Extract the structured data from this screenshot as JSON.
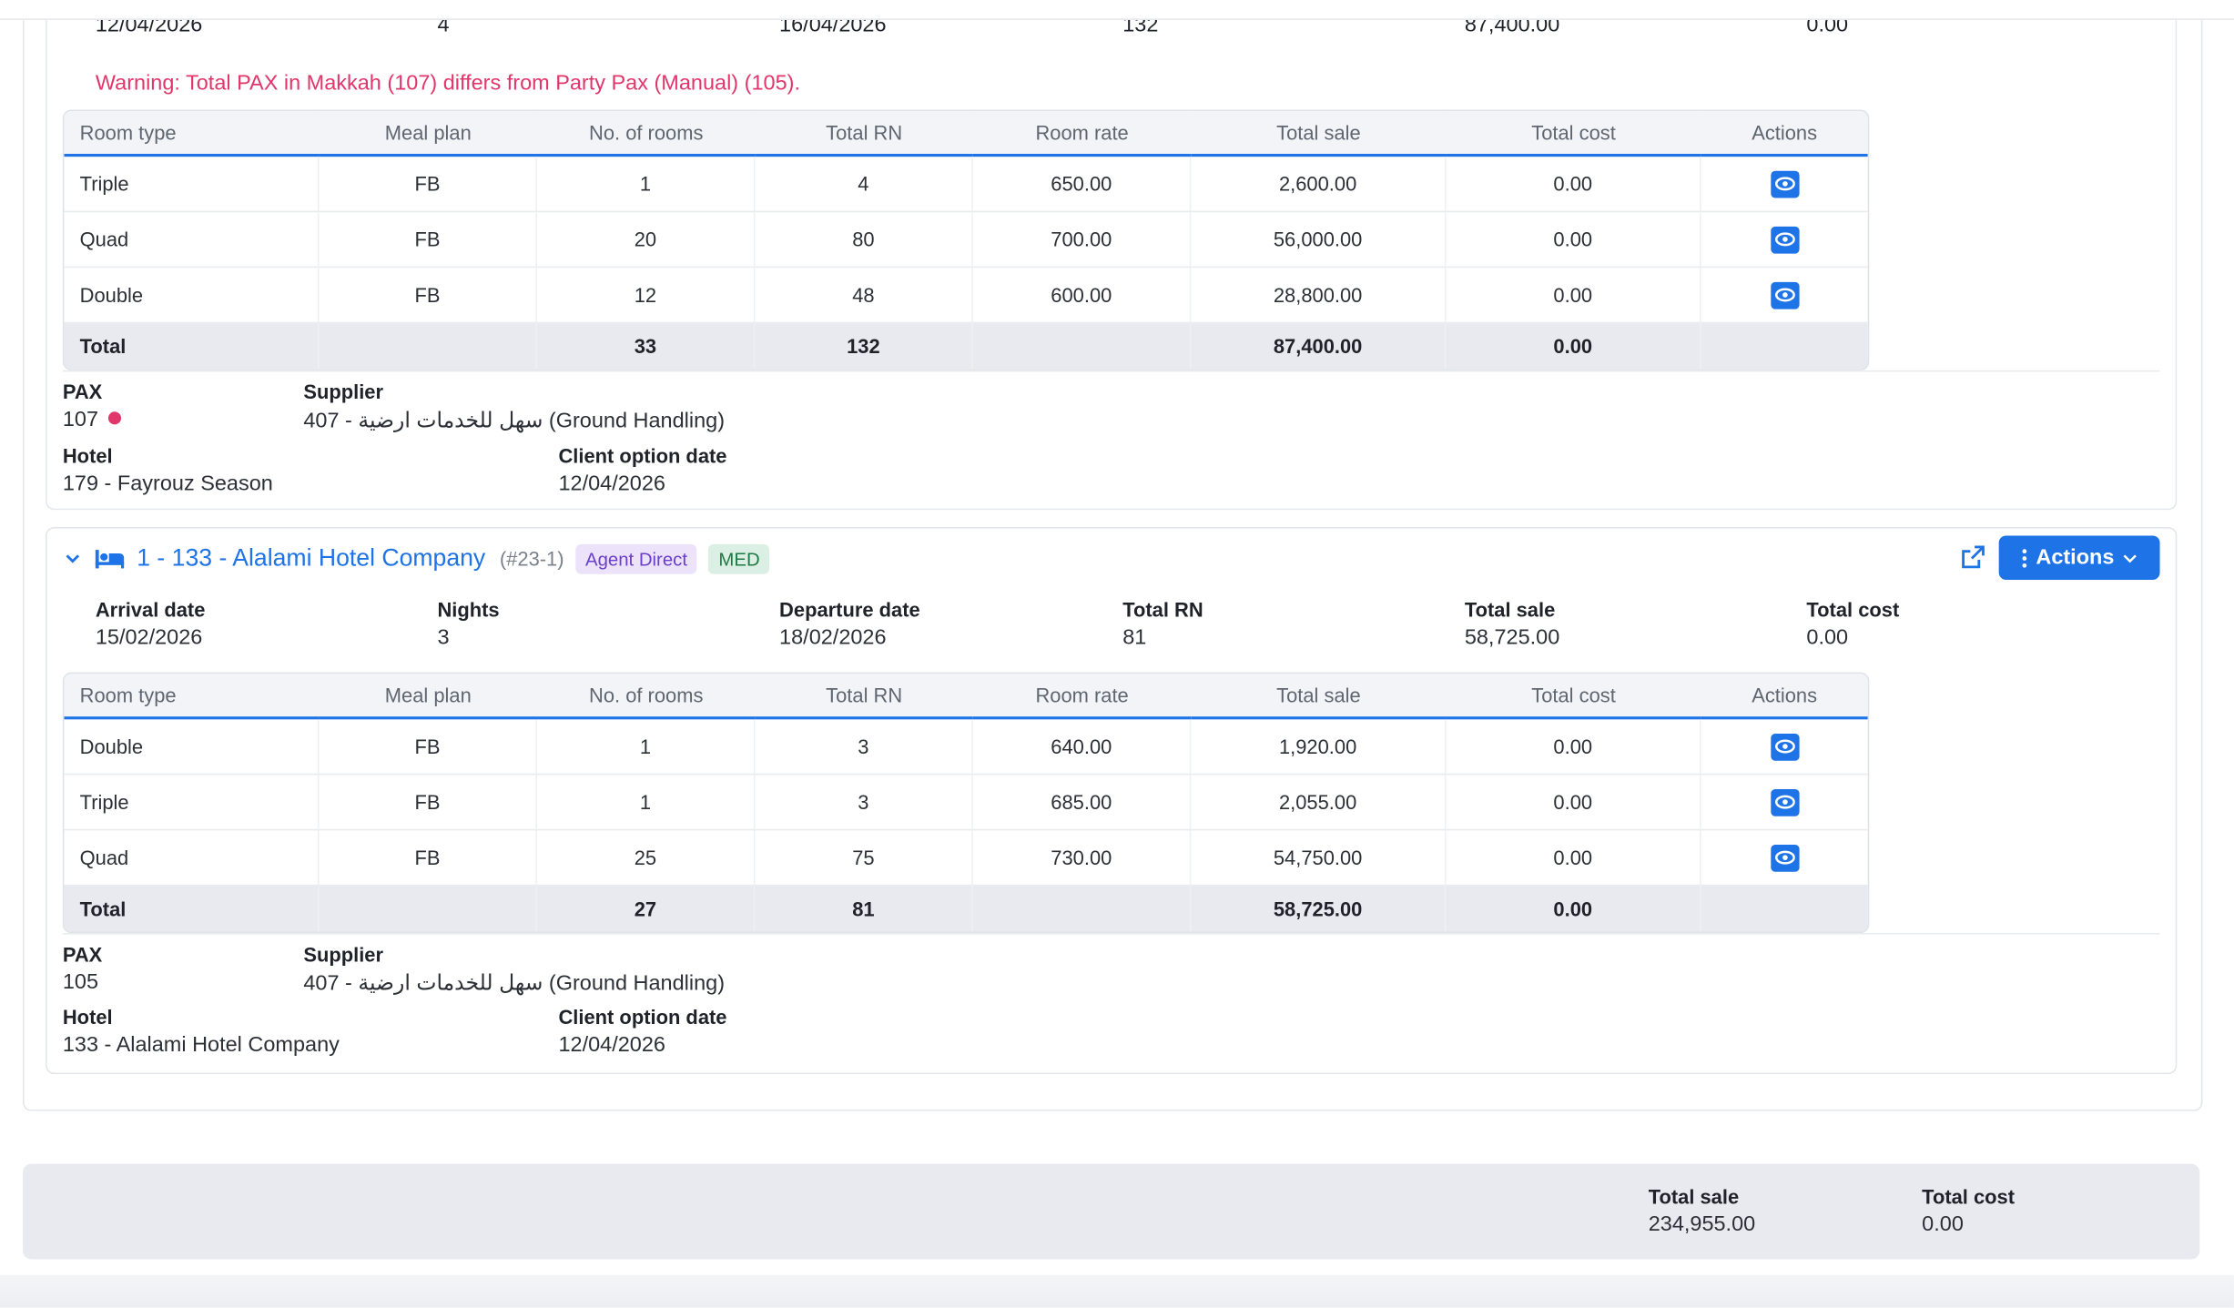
{
  "prev_row": {
    "arrival": "12/04/2026",
    "nights": "4",
    "departure": "16/04/2026",
    "total_rn": "132",
    "total_sale": "87,400.00",
    "total_cost": "0.00"
  },
  "warning": "Warning: Total PAX in Makkah (107) differs from Party Pax (Manual) (105).",
  "columns": [
    "Room type",
    "Meal plan",
    "No. of rooms",
    "Total RN",
    "Room rate",
    "Total sale",
    "Total cost",
    "Actions"
  ],
  "hotel1": {
    "rows": [
      {
        "type": "Triple",
        "meal": "FB",
        "rooms": "1",
        "rn": "4",
        "rate": "650.00",
        "sale": "2,600.00",
        "cost": "0.00"
      },
      {
        "type": "Quad",
        "meal": "FB",
        "rooms": "20",
        "rn": "80",
        "rate": "700.00",
        "sale": "56,000.00",
        "cost": "0.00"
      },
      {
        "type": "Double",
        "meal": "FB",
        "rooms": "12",
        "rn": "48",
        "rate": "600.00",
        "sale": "28,800.00",
        "cost": "0.00"
      }
    ],
    "total": {
      "label": "Total",
      "rooms": "33",
      "rn": "132",
      "sale": "87,400.00",
      "cost": "0.00"
    },
    "pax_label": "PAX",
    "pax": "107",
    "supplier_label": "Supplier",
    "supplier": "407 - سهل للخدمات ارضية (Ground Handling)",
    "hotel_label": "Hotel",
    "hotel": "179 - Fayrouz Season",
    "option_label": "Client option date",
    "option_date": "12/04/2026"
  },
  "hotel2": {
    "title": "1 - 133 - Alalami Hotel Company",
    "ref": "(#23-1)",
    "badge_agent": "Agent Direct",
    "badge_med": "MED",
    "actions_label": "Actions",
    "summary": {
      "arrival_label": "Arrival date",
      "arrival": "15/02/2026",
      "nights_label": "Nights",
      "nights": "3",
      "departure_label": "Departure date",
      "departure": "18/02/2026",
      "rn_label": "Total RN",
      "rn": "81",
      "sale_label": "Total sale",
      "sale": "58,725.00",
      "cost_label": "Total cost",
      "cost": "0.00"
    },
    "rows": [
      {
        "type": "Double",
        "meal": "FB",
        "rooms": "1",
        "rn": "3",
        "rate": "640.00",
        "sale": "1,920.00",
        "cost": "0.00"
      },
      {
        "type": "Triple",
        "meal": "FB",
        "rooms": "1",
        "rn": "3",
        "rate": "685.00",
        "sale": "2,055.00",
        "cost": "0.00"
      },
      {
        "type": "Quad",
        "meal": "FB",
        "rooms": "25",
        "rn": "75",
        "rate": "730.00",
        "sale": "54,750.00",
        "cost": "0.00"
      }
    ],
    "total": {
      "label": "Total",
      "rooms": "27",
      "rn": "81",
      "sale": "58,725.00",
      "cost": "0.00"
    },
    "pax_label": "PAX",
    "pax": "105",
    "supplier_label": "Supplier",
    "supplier": "407 - سهل للخدمات ارضية (Ground Handling)",
    "hotel_label": "Hotel",
    "hotel": "133 - Alalami Hotel Company",
    "option_label": "Client option date",
    "option_date": "12/04/2026"
  },
  "footer": {
    "sale_label": "Total sale",
    "sale": "234,955.00",
    "cost_label": "Total cost",
    "cost": "0.00"
  },
  "colors": {
    "accent": "#1e73e6",
    "warning": "#e2356b",
    "total_row": "#e9eaf0"
  }
}
